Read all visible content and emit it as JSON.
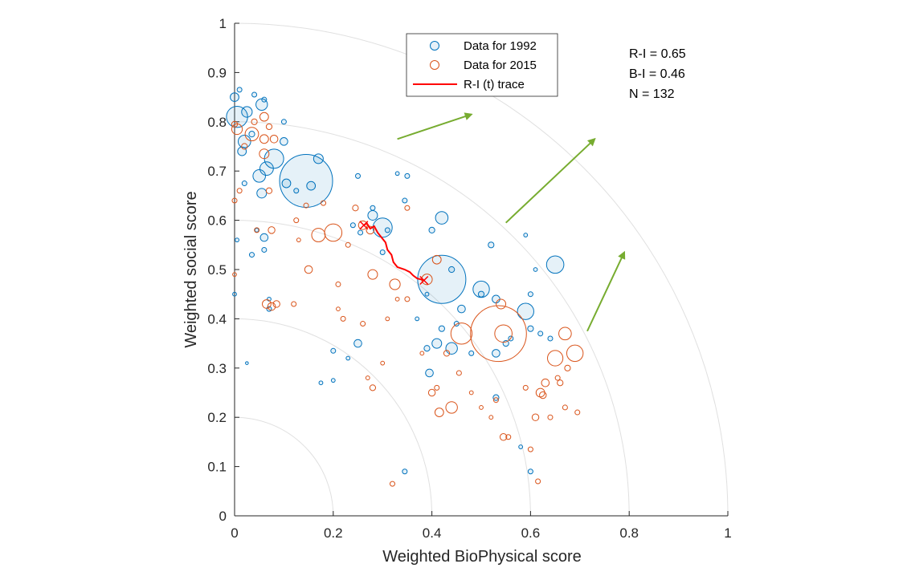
{
  "chart_data": {
    "type": "scatter",
    "title": "",
    "xlabel": "Weighted BioPhysical score",
    "ylabel": "Weighted social score",
    "xlim": [
      0,
      1
    ],
    "ylim": [
      0,
      1
    ],
    "xticks": [
      "0",
      "0.2",
      "0.4",
      "0.6",
      "0.8",
      "1"
    ],
    "yticks": [
      "0",
      "0.1",
      "0.2",
      "0.3",
      "0.4",
      "0.5",
      "0.6",
      "0.7",
      "0.8",
      "0.9",
      "1"
    ],
    "polar_arcs": [
      0.2,
      0.4,
      0.6,
      0.8,
      1.0
    ],
    "legend": {
      "placement": "top-center",
      "entries": [
        "Data for 1992",
        "Data for 2015",
        "R-I (t) trace"
      ]
    },
    "annotations": [
      "R-I = 0.65",
      "B-I = 0.46",
      "N = 132"
    ],
    "colors": {
      "s1992": "#0072BD",
      "s2015": "#D95319",
      "trace": "#FF0000",
      "arrow": "#77AC30",
      "arc": "#E0E0E0"
    },
    "arrows": [
      {
        "from": [
          0.33,
          0.765
        ],
        "to": [
          0.48,
          0.815
        ]
      },
      {
        "from": [
          0.55,
          0.595
        ],
        "to": [
          0.73,
          0.765
        ]
      },
      {
        "from": [
          0.715,
          0.375
        ],
        "to": [
          0.79,
          0.535
        ]
      }
    ],
    "series": [
      {
        "name": "Data for 1992",
        "color": "#0072BD",
        "fill": true,
        "points": [
          [
            0.145,
            0.68,
            5.5
          ],
          [
            0.42,
            0.48,
            5.0
          ],
          [
            0.3,
            0.585,
            2.0
          ],
          [
            0.005,
            0.81,
            2.2
          ],
          [
            0.08,
            0.725,
            2.0
          ],
          [
            0.65,
            0.51,
            1.8
          ],
          [
            0.59,
            0.415,
            1.7
          ],
          [
            0.5,
            0.46,
            1.7
          ],
          [
            0.42,
            0.605,
            1.3
          ],
          [
            0.35,
            0.69,
            0.5
          ],
          [
            0.055,
            0.835,
            1.2
          ],
          [
            0.025,
            0.82,
            1.1
          ],
          [
            0.065,
            0.705,
            1.4
          ],
          [
            0.05,
            0.69,
            1.3
          ],
          [
            0.055,
            0.655,
            1.0
          ],
          [
            0.02,
            0.76,
            1.3
          ],
          [
            0.17,
            0.725,
            1.0
          ],
          [
            0.1,
            0.76,
            0.8
          ],
          [
            0.155,
            0.67,
            0.9
          ],
          [
            0.035,
            0.775,
            0.6
          ],
          [
            0.0,
            0.85,
            0.9
          ],
          [
            0.01,
            0.865,
            0.5
          ],
          [
            0.04,
            0.855,
            0.5
          ],
          [
            0.06,
            0.845,
            0.5
          ],
          [
            0.015,
            0.74,
            0.9
          ],
          [
            0.105,
            0.675,
            0.9
          ],
          [
            0.125,
            0.66,
            0.5
          ],
          [
            0.345,
            0.64,
            0.5
          ],
          [
            0.28,
            0.61,
            1.0
          ],
          [
            0.4,
            0.58,
            0.6
          ],
          [
            0.52,
            0.55,
            0.6
          ],
          [
            0.44,
            0.5,
            0.6
          ],
          [
            0.5,
            0.45,
            0.6
          ],
          [
            0.53,
            0.44,
            0.8
          ],
          [
            0.46,
            0.42,
            0.8
          ],
          [
            0.42,
            0.38,
            0.6
          ],
          [
            0.45,
            0.39,
            0.5
          ],
          [
            0.44,
            0.34,
            1.2
          ],
          [
            0.41,
            0.35,
            1.0
          ],
          [
            0.53,
            0.33,
            0.8
          ],
          [
            0.55,
            0.35,
            0.6
          ],
          [
            0.6,
            0.38,
            0.6
          ],
          [
            0.56,
            0.36,
            0.5
          ],
          [
            0.39,
            0.34,
            0.6
          ],
          [
            0.395,
            0.29,
            0.8
          ],
          [
            0.53,
            0.24,
            0.6
          ],
          [
            0.58,
            0.14,
            0.4
          ],
          [
            0.6,
            0.09,
            0.5
          ],
          [
            0.345,
            0.09,
            0.5
          ],
          [
            0.2,
            0.335,
            0.5
          ],
          [
            0.25,
            0.35,
            0.8
          ],
          [
            0.07,
            0.42,
            0.5
          ],
          [
            0.035,
            0.53,
            0.5
          ],
          [
            0.06,
            0.54,
            0.5
          ],
          [
            0.06,
            0.565,
            0.8
          ],
          [
            0.25,
            0.69,
            0.5
          ],
          [
            0.33,
            0.695,
            0.4
          ],
          [
            0.28,
            0.625,
            0.5
          ],
          [
            0.31,
            0.58,
            0.5
          ],
          [
            0.255,
            0.575,
            0.5
          ],
          [
            0.3,
            0.535,
            0.5
          ],
          [
            0.24,
            0.59,
            0.5
          ],
          [
            0.59,
            0.57,
            0.4
          ],
          [
            0.61,
            0.5,
            0.4
          ],
          [
            0.62,
            0.37,
            0.5
          ],
          [
            0.64,
            0.36,
            0.5
          ],
          [
            0.23,
            0.32,
            0.4
          ],
          [
            0.175,
            0.27,
            0.4
          ],
          [
            0.2,
            0.275,
            0.4
          ],
          [
            0.07,
            0.44,
            0.4
          ],
          [
            0.0,
            0.45,
            0.4
          ],
          [
            0.025,
            0.31,
            0.3
          ],
          [
            0.1,
            0.8,
            0.5
          ],
          [
            0.02,
            0.675,
            0.5
          ],
          [
            0.005,
            0.56,
            0.4
          ],
          [
            0.6,
            0.45,
            0.5
          ],
          [
            0.48,
            0.33,
            0.5
          ],
          [
            0.39,
            0.45,
            0.4
          ],
          [
            0.37,
            0.4,
            0.4
          ],
          [
            0.045,
            0.58,
            0.4
          ]
        ]
      },
      {
        "name": "Data for 2015",
        "color": "#D95319",
        "fill": false,
        "points": [
          [
            0.535,
            0.37,
            5.8
          ],
          [
            0.46,
            0.37,
            2.2
          ],
          [
            0.69,
            0.33,
            1.7
          ],
          [
            0.65,
            0.32,
            1.6
          ],
          [
            0.67,
            0.37,
            1.3
          ],
          [
            0.44,
            0.22,
            1.2
          ],
          [
            0.54,
            0.43,
            1.0
          ],
          [
            0.545,
            0.37,
            1.8
          ],
          [
            0.2,
            0.575,
            1.8
          ],
          [
            0.17,
            0.57,
            1.4
          ],
          [
            0.39,
            0.48,
            1.1
          ],
          [
            0.28,
            0.49,
            1.0
          ],
          [
            0.325,
            0.47,
            1.1
          ],
          [
            0.41,
            0.52,
            0.9
          ],
          [
            0.06,
            0.735,
            1.0
          ],
          [
            0.035,
            0.775,
            1.4
          ],
          [
            0.005,
            0.785,
            1.1
          ],
          [
            0.06,
            0.81,
            0.9
          ],
          [
            0.06,
            0.765,
            0.9
          ],
          [
            0.08,
            0.765,
            0.8
          ],
          [
            0.0,
            0.795,
            0.6
          ],
          [
            0.07,
            0.79,
            0.6
          ],
          [
            0.065,
            0.43,
            0.9
          ],
          [
            0.075,
            0.425,
            0.8
          ],
          [
            0.085,
            0.43,
            0.7
          ],
          [
            0.045,
            0.58,
            0.5
          ],
          [
            0.075,
            0.58,
            0.7
          ],
          [
            0.15,
            0.5,
            0.8
          ],
          [
            0.415,
            0.21,
            0.9
          ],
          [
            0.62,
            0.25,
            0.9
          ],
          [
            0.625,
            0.245,
            0.7
          ],
          [
            0.61,
            0.2,
            0.7
          ],
          [
            0.63,
            0.27,
            0.8
          ],
          [
            0.545,
            0.16,
            0.7
          ],
          [
            0.53,
            0.235,
            0.5
          ],
          [
            0.4,
            0.25,
            0.7
          ],
          [
            0.28,
            0.26,
            0.6
          ],
          [
            0.32,
            0.065,
            0.5
          ],
          [
            0.615,
            0.07,
            0.5
          ],
          [
            0.6,
            0.135,
            0.5
          ],
          [
            0.64,
            0.2,
            0.5
          ],
          [
            0.66,
            0.27,
            0.6
          ],
          [
            0.675,
            0.3,
            0.6
          ],
          [
            0.655,
            0.28,
            0.5
          ],
          [
            0.67,
            0.22,
            0.5
          ],
          [
            0.695,
            0.21,
            0.5
          ],
          [
            0.52,
            0.2,
            0.4
          ],
          [
            0.555,
            0.16,
            0.5
          ],
          [
            0.59,
            0.26,
            0.5
          ],
          [
            0.26,
            0.39,
            0.5
          ],
          [
            0.22,
            0.4,
            0.5
          ],
          [
            0.31,
            0.4,
            0.4
          ],
          [
            0.12,
            0.43,
            0.5
          ],
          [
            0.125,
            0.6,
            0.5
          ],
          [
            0.145,
            0.63,
            0.5
          ],
          [
            0.18,
            0.635,
            0.5
          ],
          [
            0.245,
            0.625,
            0.6
          ],
          [
            0.26,
            0.59,
            0.9
          ],
          [
            0.275,
            0.58,
            0.8
          ],
          [
            0.35,
            0.625,
            0.5
          ],
          [
            0.23,
            0.55,
            0.5
          ],
          [
            0.43,
            0.33,
            0.6
          ],
          [
            0.455,
            0.29,
            0.5
          ],
          [
            0.41,
            0.26,
            0.5
          ],
          [
            0.35,
            0.44,
            0.5
          ],
          [
            0.02,
            0.75,
            0.6
          ],
          [
            0.04,
            0.8,
            0.6
          ],
          [
            0.07,
            0.66,
            0.6
          ],
          [
            0.0,
            0.64,
            0.5
          ],
          [
            0.01,
            0.66,
            0.5
          ],
          [
            0.0,
            0.49,
            0.4
          ],
          [
            0.21,
            0.42,
            0.4
          ],
          [
            0.21,
            0.47,
            0.5
          ],
          [
            0.13,
            0.56,
            0.4
          ],
          [
            0.3,
            0.31,
            0.4
          ],
          [
            0.27,
            0.28,
            0.4
          ],
          [
            0.33,
            0.44,
            0.4
          ],
          [
            0.38,
            0.33,
            0.4
          ],
          [
            0.48,
            0.25,
            0.4
          ],
          [
            0.5,
            0.22,
            0.4
          ]
        ]
      }
    ],
    "trace": {
      "name": "R-I (t) trace",
      "points": [
        [
          0.262,
          0.59
        ],
        [
          0.268,
          0.594
        ],
        [
          0.275,
          0.583
        ],
        [
          0.283,
          0.588
        ],
        [
          0.29,
          0.575
        ],
        [
          0.298,
          0.565
        ],
        [
          0.306,
          0.555
        ],
        [
          0.31,
          0.54
        ],
        [
          0.318,
          0.53
        ],
        [
          0.322,
          0.515
        ],
        [
          0.33,
          0.505
        ],
        [
          0.345,
          0.5
        ],
        [
          0.355,
          0.495
        ],
        [
          0.362,
          0.488
        ],
        [
          0.37,
          0.482
        ],
        [
          0.378,
          0.48
        ],
        [
          0.384,
          0.478
        ]
      ]
    }
  }
}
